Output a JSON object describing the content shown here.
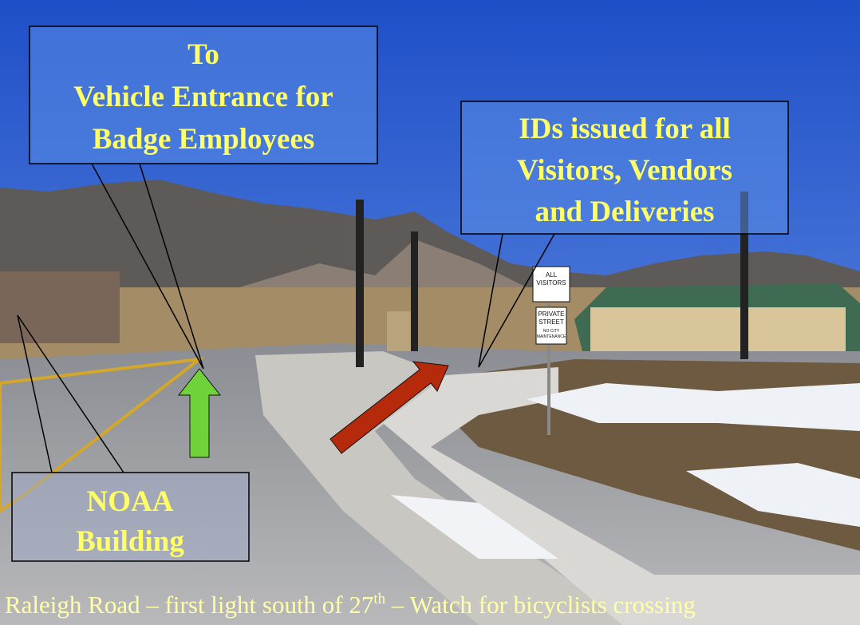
{
  "callouts": [
    {
      "lines": [
        "To",
        "Vehicle Entrance for",
        "Badge Employees"
      ]
    },
    {
      "lines": [
        "IDs issued for all",
        "Visitors, Vendors",
        "and Deliveries"
      ]
    },
    {
      "lines": [
        "NOAA",
        "Building"
      ]
    }
  ],
  "signs": {
    "visitors": [
      "ALL",
      "VISITORS"
    ],
    "private": [
      "PRIVATE",
      "STREET",
      "NO CITY",
      "MAINTENANCE"
    ]
  },
  "caption": {
    "before": "Raleigh Road – first light south of 27",
    "sup": "th",
    "after": " – Watch for bicyclists crossing"
  }
}
